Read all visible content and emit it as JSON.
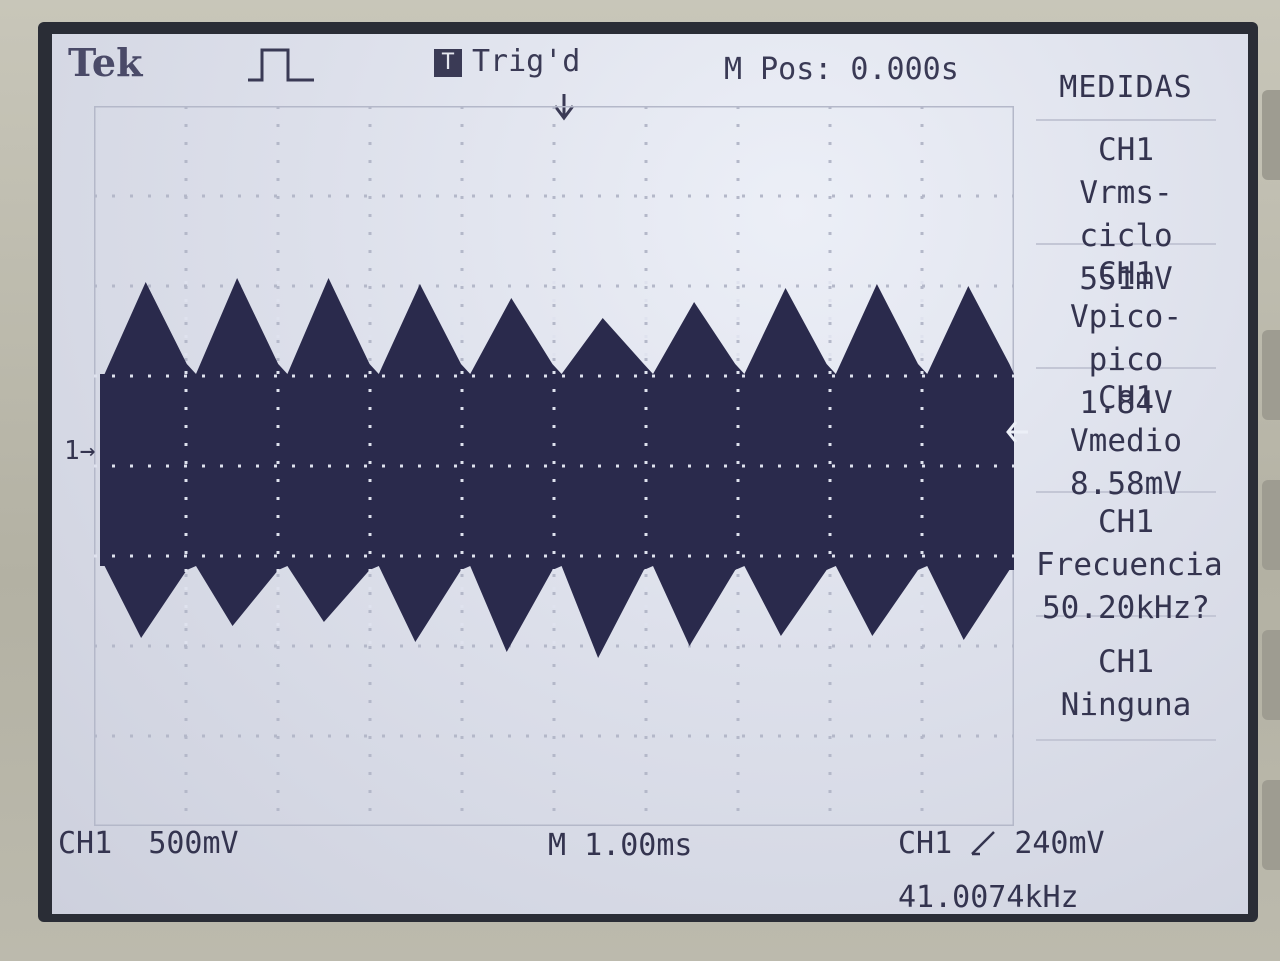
{
  "header": {
    "brand": "Tek",
    "trigger_icon_letter": "T",
    "trigger_status": "Trig'd",
    "horizontal_position": "M Pos: 0.000s"
  },
  "menu": {
    "title": "MEDIDAS",
    "items": [
      {
        "channel": "CH1",
        "label": "Vrms-ciclo",
        "value": "551mV"
      },
      {
        "channel": "CH1",
        "label": "Vpico-pico",
        "value": "1.84V"
      },
      {
        "channel": "CH1",
        "label": "Vmedio",
        "value": "8.58mV"
      },
      {
        "channel": "CH1",
        "label": "Frecuencia",
        "value": "50.20kHz?"
      },
      {
        "channel": "CH1",
        "label": "Ninguna",
        "value": ""
      }
    ]
  },
  "footer": {
    "channel_label": "CH1",
    "volts_per_div": "500mV",
    "time_per_div": "M 1.00ms",
    "trigger_source": "CH1",
    "trigger_level": "240mV",
    "trigger_frequency": "41.0074kHz"
  },
  "channel_marker": "1",
  "colors": {
    "trace": "#2a2a4c",
    "screen_bg": "#dde0eb",
    "text": "#34344f",
    "bezel": "#b9b7a9"
  },
  "icons": [
    "pulse-icon",
    "trigger-position-arrow-icon",
    "trigger-slope-rising-icon",
    "trigger-level-marker-icon"
  ]
}
